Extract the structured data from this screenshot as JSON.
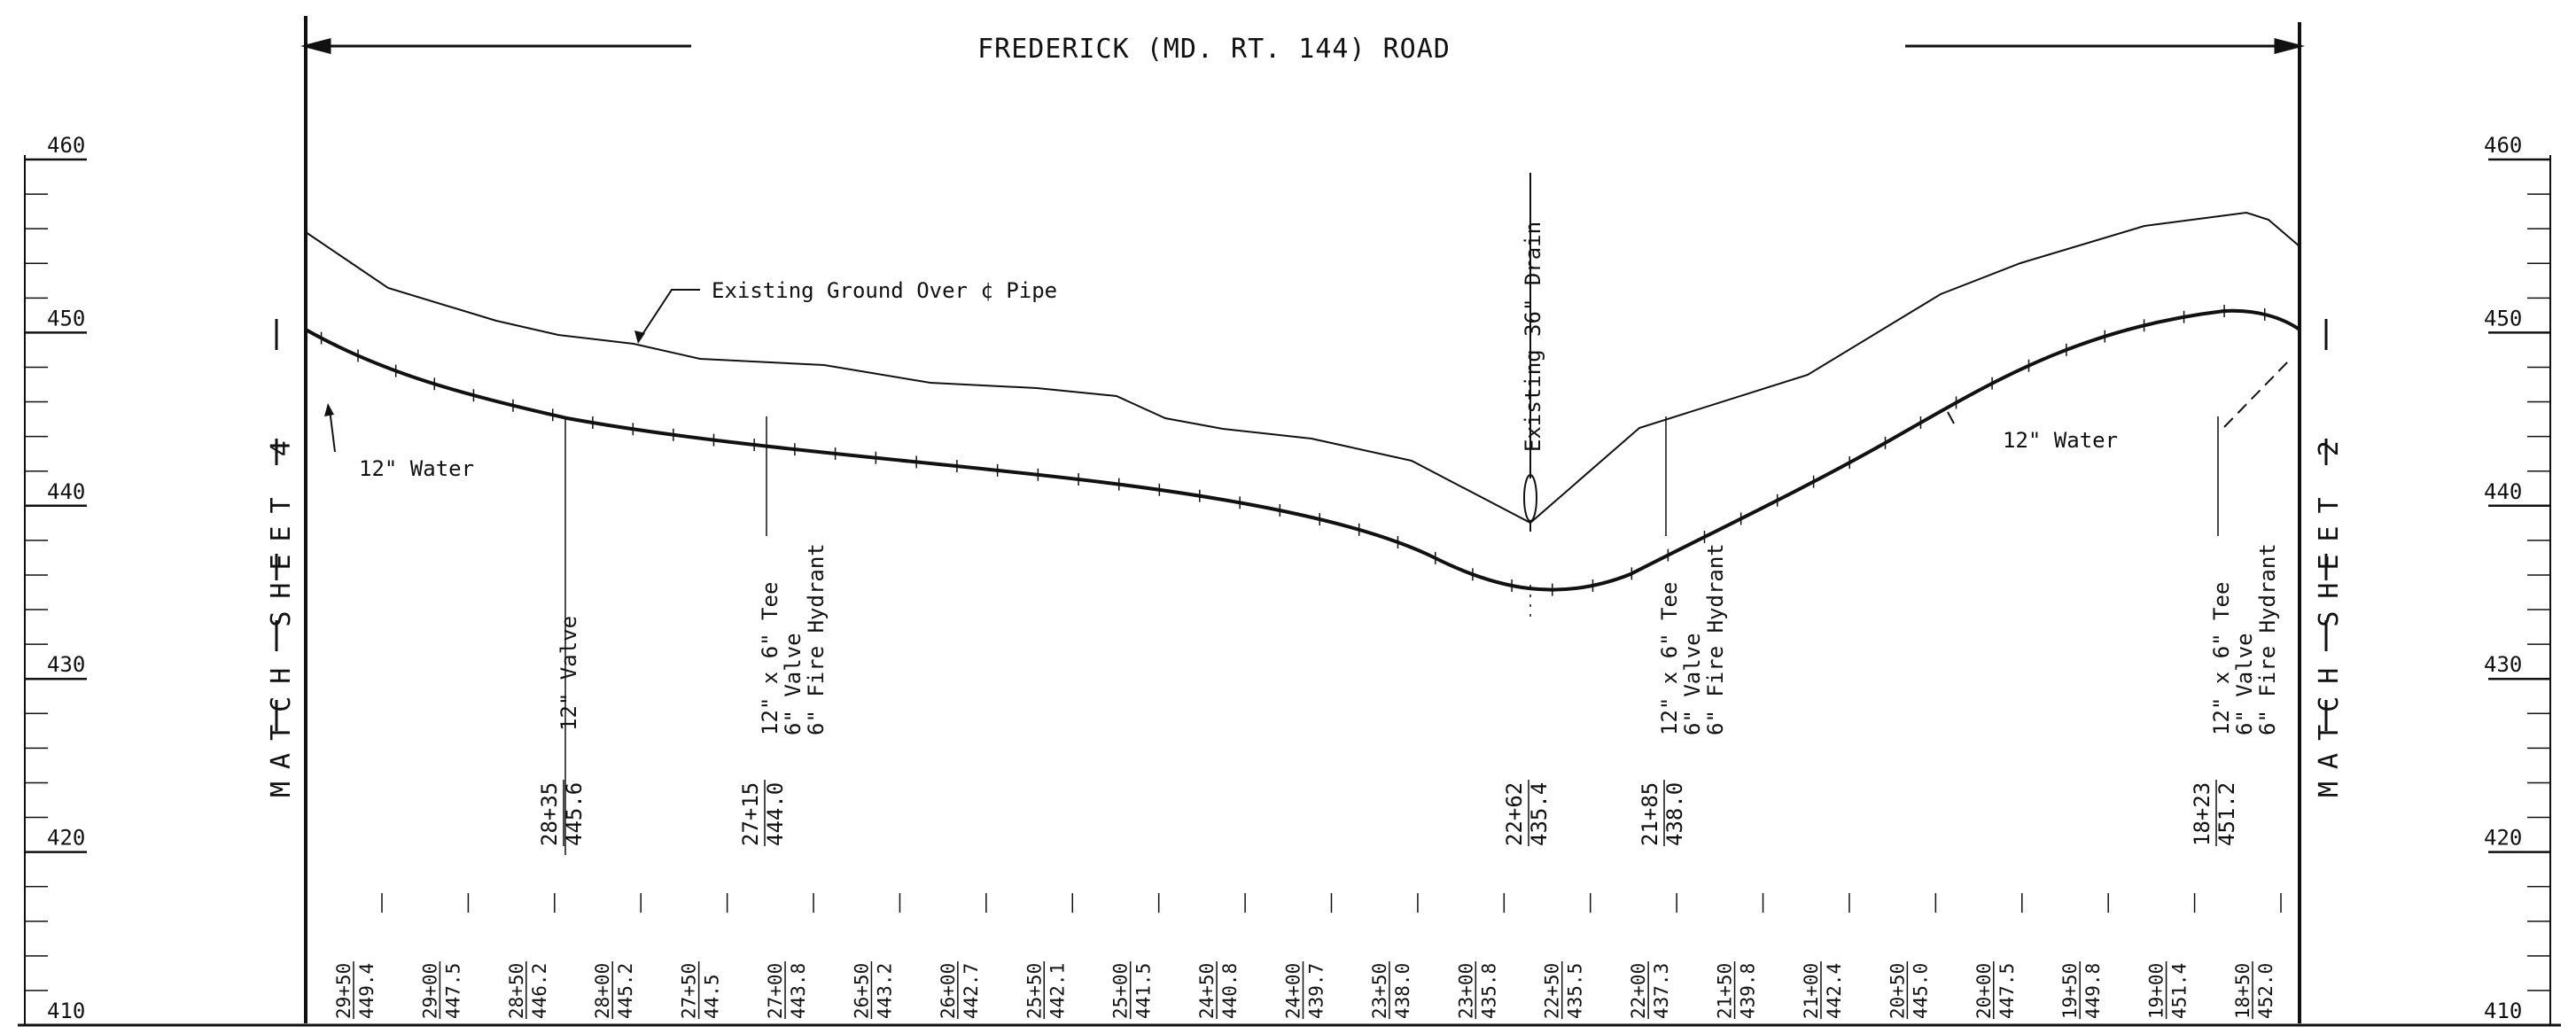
{
  "title": "FREDERICK (MD. RT. 144) ROAD",
  "axis": {
    "left_labels": [
      "460",
      "450",
      "440",
      "430",
      "420",
      "410"
    ],
    "right_labels": [
      "460",
      "450",
      "440",
      "430",
      "420",
      "410"
    ],
    "range": [
      410,
      460
    ]
  },
  "match_left": "MATCH SHEET 4",
  "match_right": "MATCH SHEET 2",
  "labels": {
    "existing_ground": "Existing Ground Over ¢ Pipe",
    "water_left": "12\" Water",
    "water_right": "12\" Water",
    "drain": "Existing 36\" Drain"
  },
  "fittings": [
    {
      "station": "28+35",
      "elev": "445.6",
      "desc": [
        "12\" Valve"
      ]
    },
    {
      "station": "27+15",
      "elev": "444.0",
      "desc": [
        "12\" x 6\" Tee",
        "6\" Valve",
        "6\" Fire Hydrant"
      ]
    },
    {
      "station": "22+62",
      "elev": "435.4",
      "desc": []
    },
    {
      "station": "21+85",
      "elev": "438.0",
      "desc": [
        "12\" x 6\" Tee",
        "6\" Valve",
        "6\" Fire Hydrant"
      ]
    },
    {
      "station": "18+23",
      "elev": "451.2",
      "desc": [
        "12\" x 6\" Tee",
        "6\" Valve",
        "6\" Fire Hydrant"
      ]
    }
  ],
  "stations": [
    {
      "sta": "29+50",
      "elev": "449.4"
    },
    {
      "sta": "29+00",
      "elev": "447.5"
    },
    {
      "sta": "28+50",
      "elev": "446.2"
    },
    {
      "sta": "28+00",
      "elev": "445.2"
    },
    {
      "sta": "27+50",
      "elev": "44.5"
    },
    {
      "sta": "27+00",
      "elev": "443.8"
    },
    {
      "sta": "26+50",
      "elev": "443.2"
    },
    {
      "sta": "26+00",
      "elev": "442.7"
    },
    {
      "sta": "25+50",
      "elev": "442.1"
    },
    {
      "sta": "25+00",
      "elev": "441.5"
    },
    {
      "sta": "24+50",
      "elev": "440.8"
    },
    {
      "sta": "24+00",
      "elev": "439.7"
    },
    {
      "sta": "23+50",
      "elev": "438.0"
    },
    {
      "sta": "23+00",
      "elev": "435.8"
    },
    {
      "sta": "22+50",
      "elev": "435.5"
    },
    {
      "sta": "22+00",
      "elev": "437.3"
    },
    {
      "sta": "21+50",
      "elev": "439.8"
    },
    {
      "sta": "21+00",
      "elev": "442.4"
    },
    {
      "sta": "20+50",
      "elev": "445.0"
    },
    {
      "sta": "20+00",
      "elev": "447.5"
    },
    {
      "sta": "19+50",
      "elev": "449.8"
    },
    {
      "sta": "19+00",
      "elev": "451.4"
    },
    {
      "sta": "18+50",
      "elev": "452.0"
    }
  ]
}
